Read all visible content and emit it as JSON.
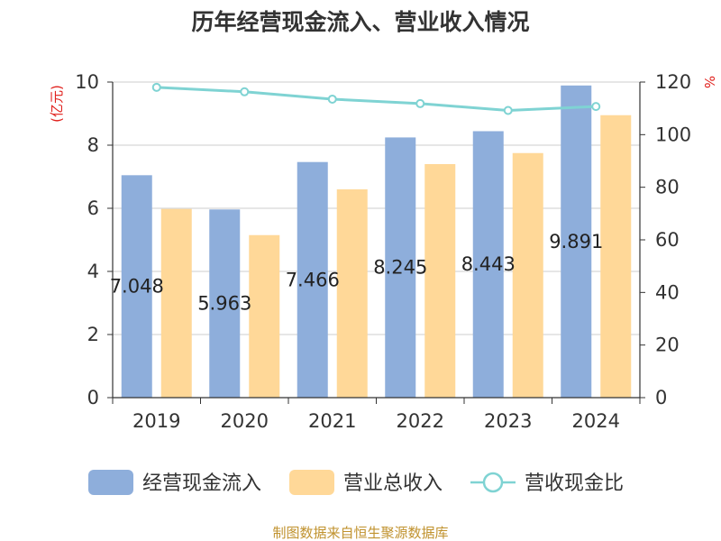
{
  "chart_data": {
    "type": "bar",
    "title": "历年经营现金流入、营业收入情况",
    "categories": [
      "2019",
      "2020",
      "2021",
      "2022",
      "2023",
      "2024"
    ],
    "series": [
      {
        "name": "经营现金流入",
        "type": "bar",
        "axis": "left",
        "color": "#8eaedb",
        "values": [
          7.048,
          5.963,
          7.466,
          8.245,
          8.443,
          9.891
        ],
        "labels": [
          "7.048",
          "5.963",
          "7.466",
          "8.245",
          "8.443",
          "9.891"
        ]
      },
      {
        "name": "营业总收入",
        "type": "bar",
        "axis": "left",
        "color": "#ffd898",
        "values": [
          5.98,
          5.15,
          6.6,
          7.4,
          7.75,
          8.95
        ]
      },
      {
        "name": "营收现金比",
        "type": "line",
        "axis": "right",
        "color": "#7fd3d3",
        "values": [
          118,
          116.3,
          113.5,
          111.8,
          109.2,
          110.7
        ]
      }
    ],
    "y_left": {
      "label": "(亿元)",
      "ylim": [
        0,
        10
      ],
      "ticks": [
        "0",
        "2",
        "4",
        "6",
        "8",
        "10"
      ]
    },
    "y_right": {
      "label": "%",
      "ylim": [
        0,
        120
      ],
      "ticks": [
        "0",
        "20",
        "40",
        "60",
        "80",
        "100",
        "120"
      ]
    },
    "grid": true,
    "legend_position": "bottom"
  },
  "source_text": "制图数据来自恒生聚源数据库"
}
